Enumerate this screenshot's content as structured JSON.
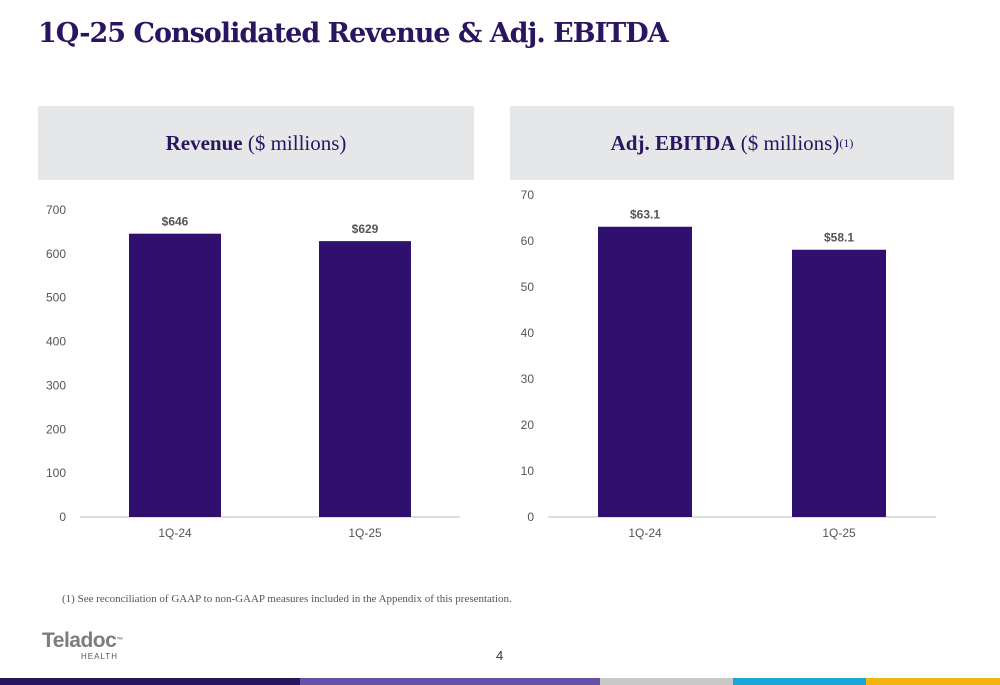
{
  "title": "1Q-25 Consolidated Revenue & Adj. EBITDA",
  "colors": {
    "title": "#2a1560",
    "bar": "#30106e",
    "panel": "#e6e7e9"
  },
  "chart_data": [
    {
      "type": "bar",
      "title_bold": "Revenue",
      "title_rest": " ($ millions)",
      "title_sup": "",
      "categories": [
        "1Q-24",
        "1Q-25"
      ],
      "values": [
        646,
        629
      ],
      "value_labels": [
        "$646",
        "$629"
      ],
      "ylim": [
        0,
        700
      ],
      "yticks": [
        "0",
        "100",
        "200",
        "300",
        "400",
        "500",
        "600",
        "700"
      ],
      "grid": false
    },
    {
      "type": "bar",
      "title_bold": "Adj. EBITDA",
      "title_rest": " ($ millions)",
      "title_sup": "(1)",
      "categories": [
        "1Q-24",
        "1Q-25"
      ],
      "values": [
        63.1,
        58.1
      ],
      "value_labels": [
        "$63.1",
        "$58.1"
      ],
      "ylim": [
        0,
        70
      ],
      "yticks": [
        "0",
        "10",
        "20",
        "30",
        "40",
        "50",
        "60",
        "70"
      ],
      "grid": false
    }
  ],
  "footnote": "(1) See reconciliation of GAAP to non-GAAP measures included in the Appendix of this presentation.",
  "logo": {
    "name": "Teladoc",
    "tm": "™",
    "sub": "HEALTH"
  },
  "page_number": "4",
  "footer_colors": [
    "#2a1560",
    "#6650a8",
    "#c8c8c8",
    "#1aa6d6",
    "#f2b411"
  ]
}
